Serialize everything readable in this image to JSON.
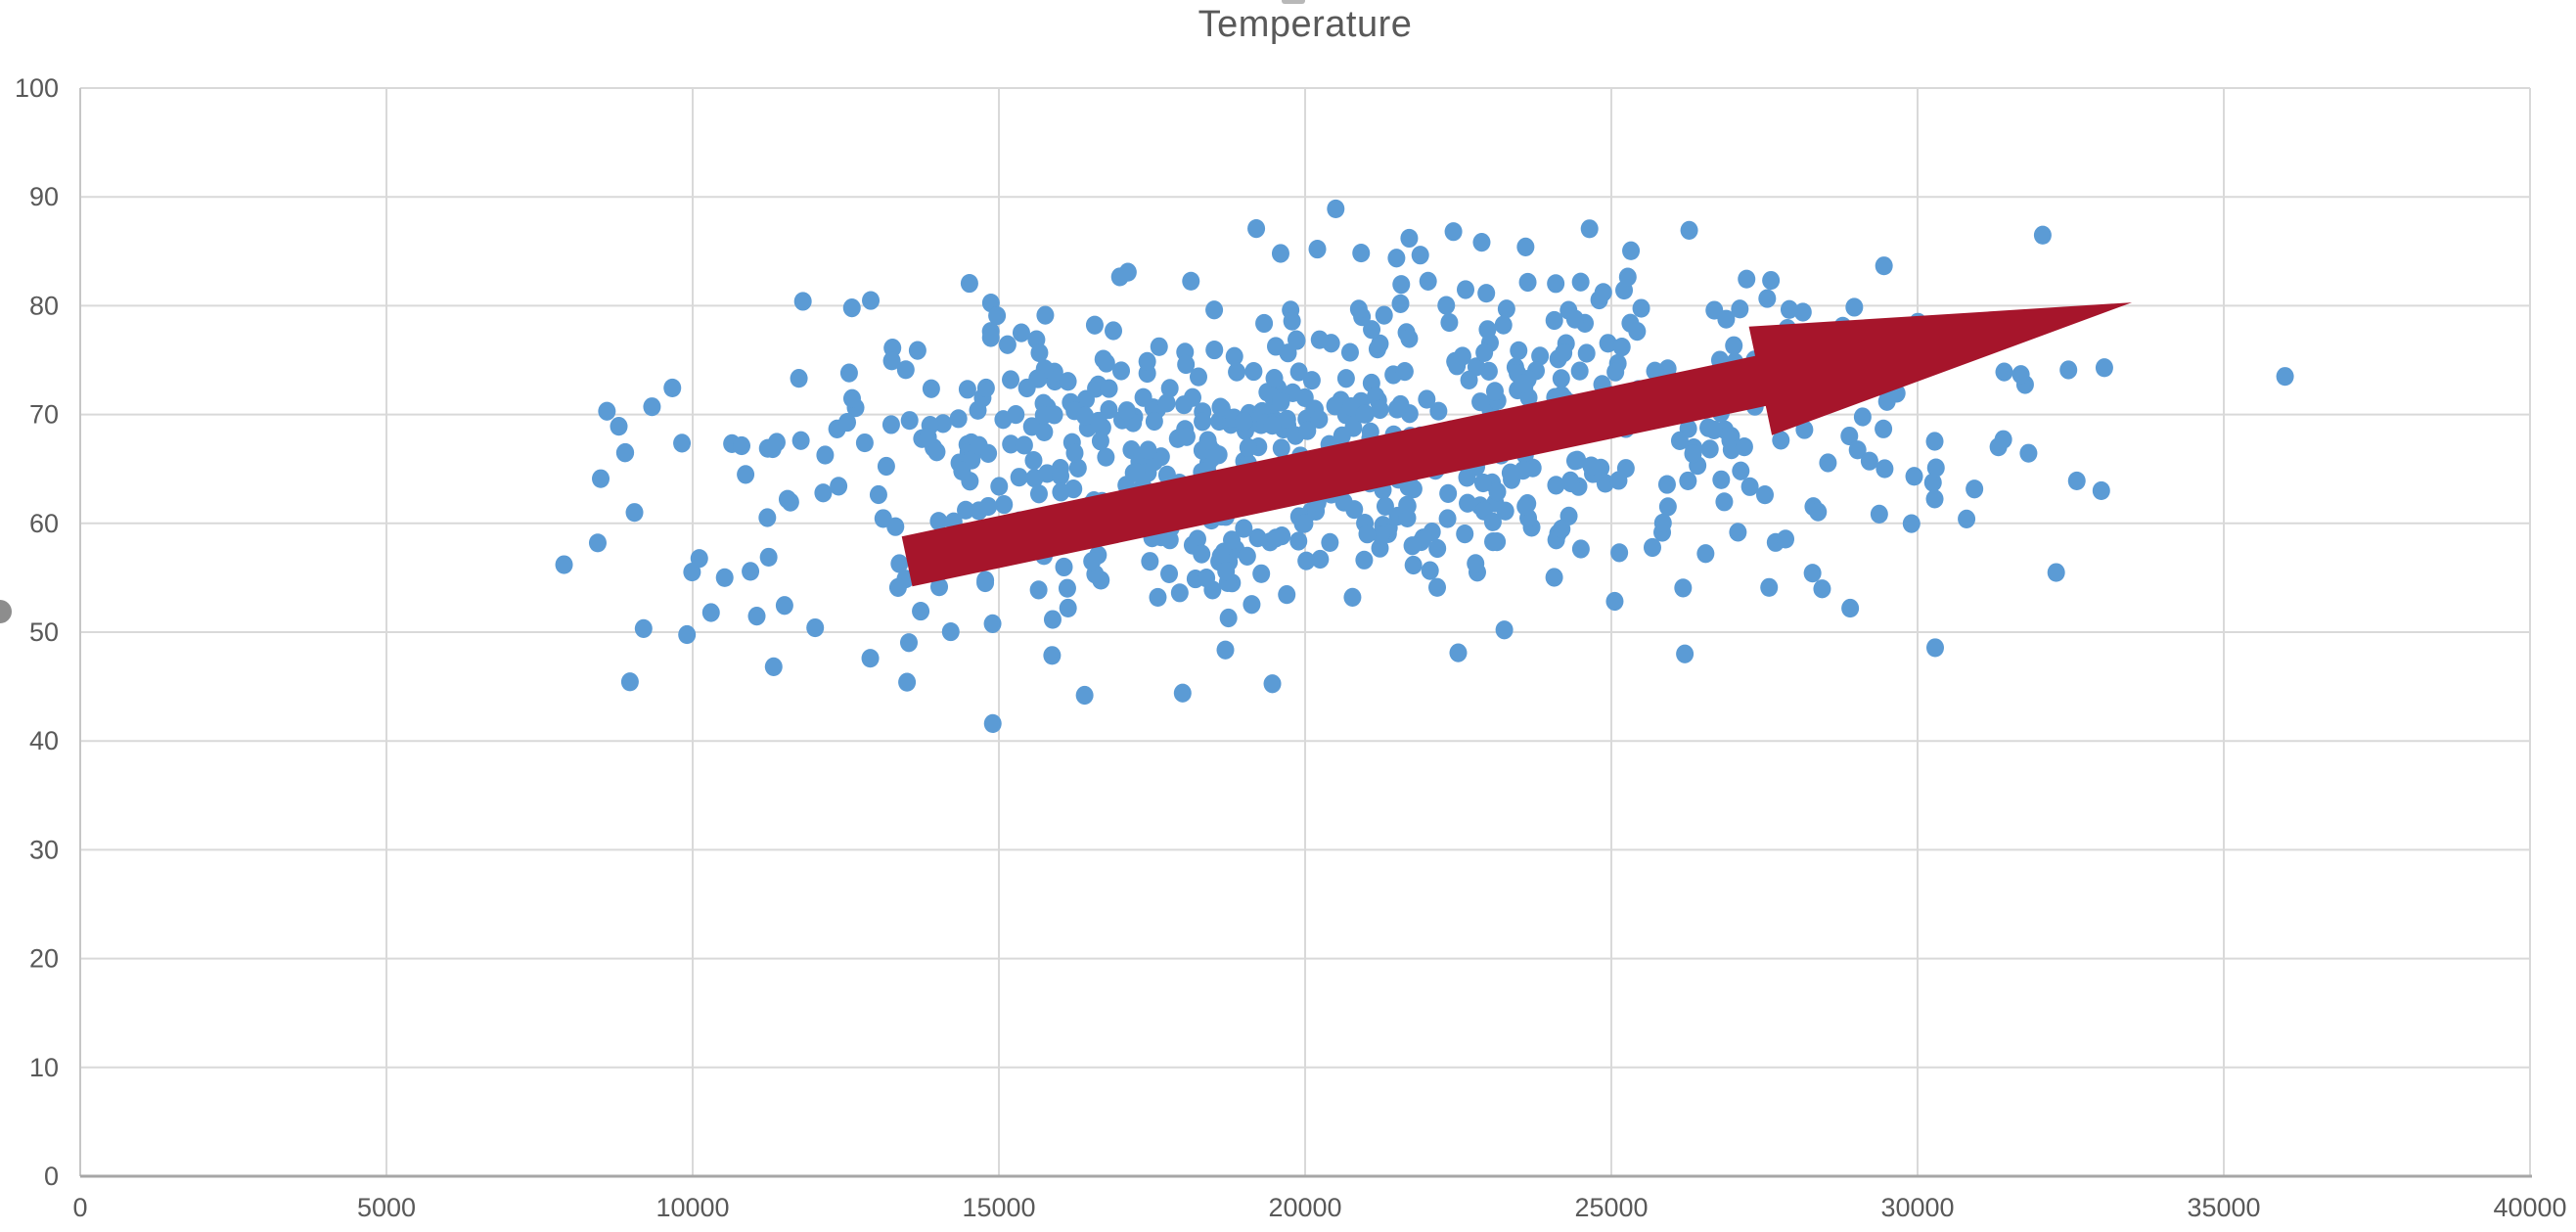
{
  "chart_data": {
    "type": "scatter",
    "title": "Temperature",
    "title_color": "#595959",
    "x_axis": {
      "min": 0,
      "max": 40000,
      "tick_step": 5000,
      "tick_labels": [
        "0",
        "5000",
        "10000",
        "15000",
        "20000",
        "25000",
        "30000",
        "35000",
        "40000"
      ],
      "label_color": "#595959"
    },
    "y_axis": {
      "min": 0,
      "max": 100,
      "tick_step": 10,
      "tick_labels": [
        "0",
        "10",
        "20",
        "30",
        "40",
        "50",
        "60",
        "70",
        "80",
        "90",
        "100"
      ],
      "label_color": "#595959"
    },
    "grid": {
      "show": true,
      "gridline_color": "#D9D9D9",
      "y_axis_line_color": "#C6C6C6",
      "x_axis_line_color": "#A6A6A6"
    },
    "legend": {
      "show": false
    },
    "series": [
      {
        "name": "Temperature",
        "marker_color": "#5B9BD5",
        "marker_radius_px": 9,
        "cluster": {
          "seed": 1337,
          "count": 720,
          "x_mean": 20400,
          "x_sd": 4900,
          "x_min": 8200,
          "x_max": 33600,
          "y_at_x_mean": 66.8,
          "slope": 0.00038,
          "y_noise_sd": 7.4,
          "y_min": 42.5,
          "y_max": 88.5
        },
        "notable_points": [
          [
            7900,
            56.2
          ],
          [
            8450,
            58.2
          ],
          [
            8600,
            70.3
          ],
          [
            8900,
            66.5
          ],
          [
            9050,
            61.0
          ],
          [
            36000,
            73.5
          ],
          [
            33050,
            74.3
          ],
          [
            32600,
            63.9
          ],
          [
            33000,
            63.0
          ],
          [
            31400,
            67.7
          ],
          [
            30800,
            60.4
          ],
          [
            30300,
            65.1
          ],
          [
            29500,
            71.2
          ],
          [
            20500,
            88.9
          ],
          [
            21700,
            86.2
          ],
          [
            23600,
            85.4
          ],
          [
            19600,
            84.8
          ],
          [
            20200,
            85.2
          ],
          [
            14900,
            41.6
          ],
          [
            16400,
            44.2
          ],
          [
            18000,
            44.4
          ],
          [
            13500,
            45.4
          ],
          [
            12900,
            47.6
          ],
          [
            22500,
            48.1
          ],
          [
            26200,
            48.0
          ],
          [
            12000,
            50.4
          ],
          [
            10300,
            51.8
          ],
          [
            28900,
            52.2
          ],
          [
            11800,
            80.4
          ],
          [
            12600,
            79.8
          ]
        ]
      }
    ],
    "annotations": {
      "arrow": {
        "shape": "block-arrow",
        "from": {
          "x": 13500,
          "y": 56.5
        },
        "to": {
          "x": 33500,
          "y": 80.3
        },
        "color": "#A6152B",
        "shaft_half_width_y_units": 2.35,
        "head_length_x_units": 6200,
        "head_half_width_y_units": 5.1
      }
    },
    "decorations": {
      "top_edge_fragment": "cropped-text-fragment",
      "left_edge_fragment": "cropped-axis-label-fragment"
    }
  }
}
